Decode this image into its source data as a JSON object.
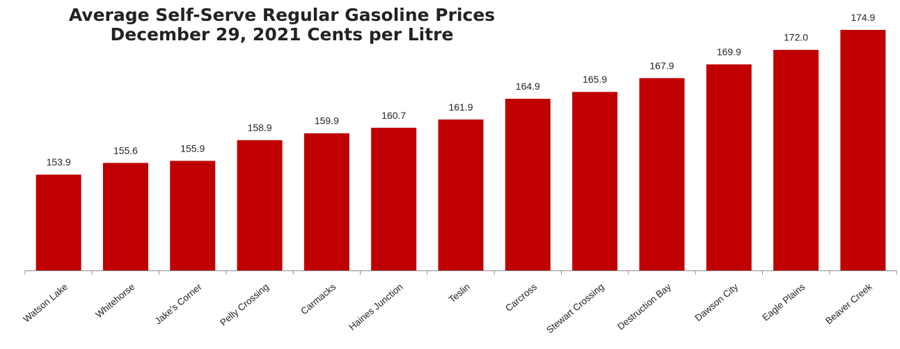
{
  "chart_data": {
    "type": "bar",
    "title_line1": "Average Self-Serve Regular Gasoline Prices",
    "title_line2": "December 29, 2021 Cents per Litre",
    "xlabel": "",
    "ylabel": "",
    "categories": [
      "Watson Lake",
      "Whitehorse",
      "Jake's Corner",
      "Pelly Crossing",
      "Carmacks",
      "Haines Junction",
      "Teslin",
      "Carcross",
      "Stewart Crossing",
      "Destruction Bay",
      "Dawson City",
      "Eagle Plains",
      "Beaver Creek"
    ],
    "values": [
      153.9,
      155.6,
      155.9,
      158.9,
      159.9,
      160.7,
      161.9,
      164.9,
      165.9,
      167.9,
      169.9,
      172.0,
      174.9
    ],
    "value_labels": [
      "153.9",
      "155.6",
      "155.9",
      "158.9",
      "159.9",
      "160.7",
      "161.9",
      "164.9",
      "165.9",
      "167.9",
      "169.9",
      "172.0",
      "174.9"
    ],
    "ylim": [
      140,
      175
    ],
    "grid": false,
    "legend": "none",
    "bar_color": "#C00000",
    "axis_color": "#8c8c8c"
  }
}
